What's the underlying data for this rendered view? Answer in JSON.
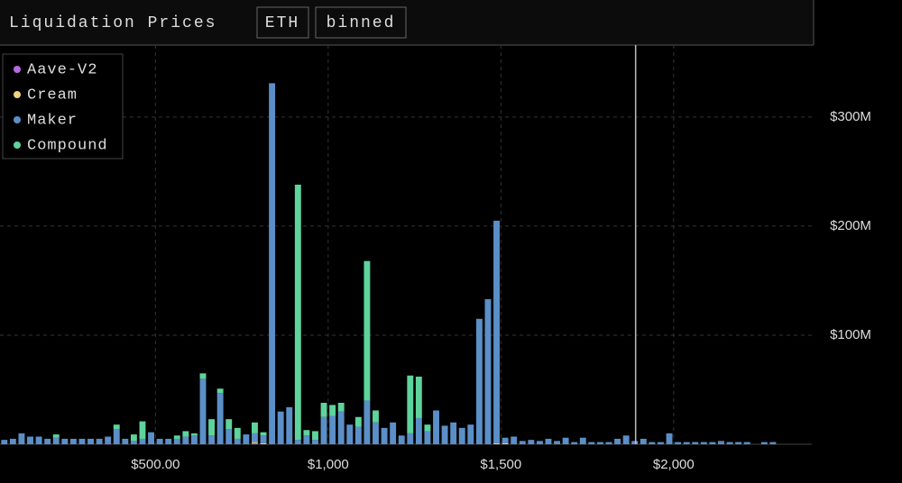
{
  "header": {
    "title": "Liquidation Prices",
    "asset": "ETH",
    "mode": "binned"
  },
  "chart_data": {
    "type": "histogram",
    "bins": [
      50,
      75,
      100,
      125,
      150,
      175,
      200,
      225,
      250,
      275,
      300,
      325,
      350,
      375,
      400,
      425,
      450,
      475,
      500,
      525,
      550,
      575,
      600,
      625,
      650,
      675,
      700,
      725,
      750,
      775,
      800,
      825,
      850,
      875,
      900,
      925,
      950,
      975,
      1000,
      1025,
      1050,
      1075,
      1100,
      1125,
      1150,
      1175,
      1200,
      1225,
      1250,
      1275,
      1300,
      1325,
      1350,
      1375,
      1400,
      1425,
      1450,
      1475,
      1500,
      1525,
      1550,
      1575,
      1600,
      1625,
      1650,
      1675,
      1700,
      1725,
      1750,
      1775,
      1800,
      1825,
      1850,
      1875,
      1900,
      1925,
      1950,
      1975,
      2000,
      2025,
      2050,
      2075,
      2100,
      2125,
      2150,
      2175,
      2200,
      2225,
      2250,
      2275,
      2300
    ],
    "series": [
      {
        "name": "Aave-V2",
        "color": "#b36ae2",
        "values": [
          0,
          0,
          0,
          0,
          0,
          0,
          0,
          0,
          0,
          0,
          0,
          0,
          1,
          0,
          0,
          0,
          0,
          0,
          0,
          0,
          0,
          0,
          0,
          0,
          0,
          0,
          0,
          0,
          0,
          1,
          0,
          0,
          0,
          0,
          0,
          0,
          0,
          0,
          0,
          0,
          0,
          0,
          0,
          0,
          0,
          0,
          0,
          0,
          0,
          0,
          0,
          0,
          0,
          0,
          0,
          0,
          0,
          0,
          0,
          0,
          0,
          0,
          0,
          0,
          0,
          0,
          0,
          0,
          0,
          0,
          0,
          0,
          0,
          0,
          0,
          0,
          0,
          0,
          0,
          0,
          0,
          0,
          0,
          1,
          0,
          0,
          0,
          0,
          0,
          0
        ]
      },
      {
        "name": "Cream",
        "color": "#f0d27a",
        "values": [
          0,
          0,
          0,
          0,
          0,
          0,
          0,
          0,
          0,
          0,
          0,
          0,
          0,
          0,
          0,
          0,
          0,
          0,
          0,
          0,
          0,
          0,
          0,
          0,
          0,
          0,
          0,
          0,
          0,
          1,
          1,
          0,
          0,
          0,
          0,
          0,
          0,
          0,
          0,
          0,
          0,
          0,
          0,
          0,
          0,
          0,
          0,
          0,
          0,
          0,
          0,
          0,
          0,
          0,
          0,
          0,
          0,
          1,
          1,
          0,
          0,
          0,
          0,
          0,
          0,
          0,
          0,
          0,
          0,
          0,
          0,
          0,
          0,
          0,
          0,
          0,
          0,
          0,
          0,
          0,
          0,
          0,
          0,
          0,
          0,
          0,
          0,
          0,
          0,
          0
        ]
      },
      {
        "name": "Maker",
        "color": "#5b8fc7",
        "values": [
          4,
          5,
          10,
          7,
          7,
          5,
          6,
          5,
          5,
          5,
          5,
          5,
          6,
          14,
          5,
          3,
          5,
          11,
          5,
          5,
          5,
          7,
          8,
          60,
          8,
          47,
          14,
          5,
          9,
          8,
          7,
          331,
          30,
          34,
          4,
          8,
          4,
          25,
          26,
          30,
          18,
          16,
          40,
          20,
          15,
          20,
          8,
          10,
          24,
          12,
          31,
          17,
          20,
          15,
          18,
          115,
          133,
          204,
          5,
          7,
          3,
          4,
          3,
          5,
          3,
          6,
          2,
          6,
          2,
          2,
          2,
          5,
          8,
          3,
          5,
          2,
          2,
          10,
          2,
          2,
          2,
          2,
          2,
          2,
          2,
          2,
          2,
          0,
          2,
          2
        ]
      },
      {
        "name": "Compound",
        "color": "#5ed39b",
        "values": [
          0,
          0,
          0,
          0,
          0,
          0,
          3,
          0,
          0,
          0,
          0,
          0,
          0,
          4,
          0,
          6,
          16,
          0,
          0,
          0,
          3,
          5,
          2,
          5,
          15,
          4,
          9,
          10,
          0,
          10,
          3,
          0,
          0,
          0,
          234,
          5,
          8,
          13,
          10,
          8,
          0,
          9,
          128,
          11,
          0,
          0,
          0,
          53,
          38,
          6,
          0,
          0,
          0,
          0,
          0,
          0,
          0,
          0,
          0,
          0,
          0,
          0,
          0,
          0,
          0,
          0,
          0,
          0,
          0,
          0,
          0,
          0,
          0,
          0,
          0,
          0,
          0,
          0,
          0,
          0,
          0,
          0,
          0,
          0,
          0,
          0,
          0,
          0,
          0,
          0
        ]
      }
    ],
    "reference_line": 1890,
    "xlim": [
      50,
      2400
    ],
    "xticks": [
      {
        "value": 500,
        "label": "$500.00"
      },
      {
        "value": 1000,
        "label": "$1,000"
      },
      {
        "value": 1500,
        "label": "$1,500"
      },
      {
        "value": 2000,
        "label": "$2,000"
      }
    ],
    "ylim": [
      0,
      366
    ],
    "yticks": [
      {
        "value": 100,
        "label": "$100M"
      },
      {
        "value": 200,
        "label": "$200M"
      },
      {
        "value": 300,
        "label": "$300M"
      }
    ],
    "grid": true,
    "legend": "upper left"
  }
}
